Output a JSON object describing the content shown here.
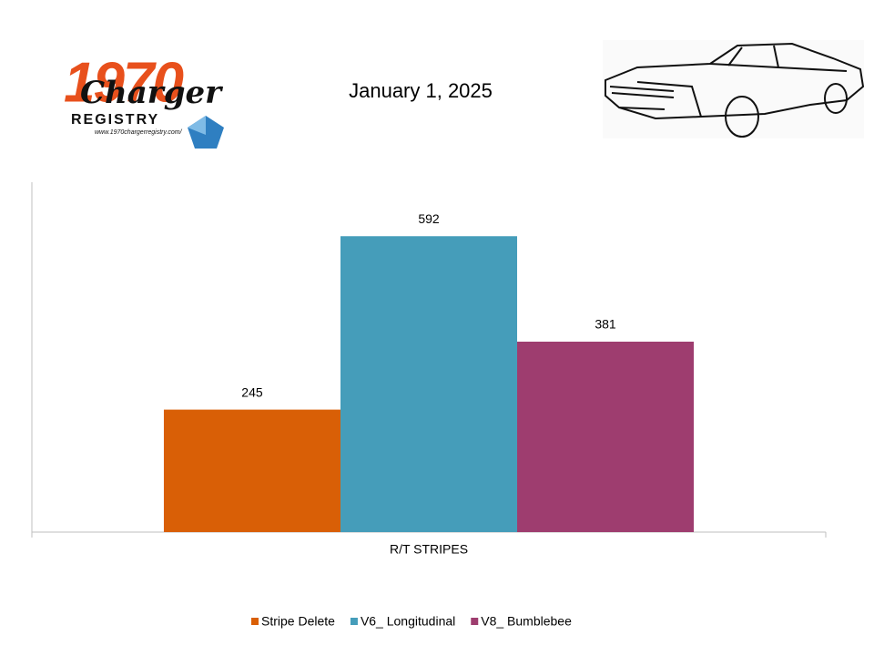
{
  "logo": {
    "year": "1970",
    "name": "Charger",
    "registry": "REGISTRY",
    "url": "www.1970chargerregistry.com/"
  },
  "chart_data": {
    "type": "bar",
    "title": "January 1, 2025",
    "categories": [
      "R/T STRIPES"
    ],
    "series": [
      {
        "name": "Stripe Delete",
        "color": "#d95f06",
        "values": [
          245
        ]
      },
      {
        "name": "V6_ Longitudinal",
        "color": "#459dba",
        "values": [
          592
        ]
      },
      {
        "name": "V8_ Bumblebee",
        "color": "#9e3d6f",
        "values": [
          381
        ]
      }
    ],
    "ylim": [
      0,
      700
    ],
    "legend": "bottom"
  }
}
